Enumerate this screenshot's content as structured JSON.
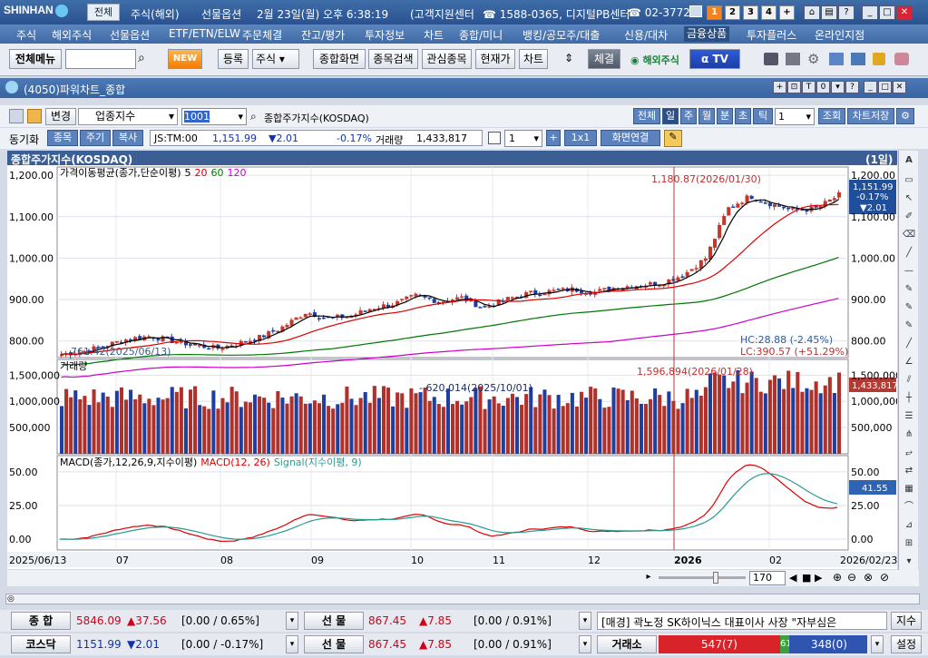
{
  "titlebar": {
    "brand": "SHINHAN",
    "all_tab": "전체",
    "stock_foreign": "주식(해외)",
    "futures_option": "선물옵션",
    "datetime": "2월 23일(월) 오후 6:38:19",
    "support": "(고객지원센터",
    "phone1": "1588-0365, 디지털PB센터",
    "phone2": "02-3772-",
    "screens": [
      "1",
      "2",
      "3",
      "4",
      "+"
    ]
  },
  "menu": [
    "주식",
    "해외주식",
    "선물옵션",
    "ETF/ETN/ELW",
    "주문체결",
    "잔고/평가",
    "투자정보",
    "차트",
    "종합/미니",
    "뱅킹/공모주/대출",
    "신용/대차",
    "금융상품",
    "투자플러스",
    "온라인지점"
  ],
  "menu_selected": "금융상품",
  "toolbar": {
    "all_menu": "전체메뉴",
    "new": "NEW",
    "register": "등록",
    "stock": "주식",
    "b1": "종합화면",
    "b2": "종목검색",
    "b3": "관심종목",
    "b4": "현재가",
    "b5": "차트",
    "b6": "체결",
    "overseas": "해외주식",
    "tv": "TV"
  },
  "window": {
    "title": "(4050)파워차트_종합",
    "change": "변경",
    "sector": "업종지수",
    "code": "1001",
    "name": "종합주가지수(KOSDAQ)",
    "periods": [
      "전체",
      "일",
      "주",
      "월",
      "분",
      "초",
      "틱"
    ],
    "period_count": "1",
    "lookup": "조회",
    "save": "차트저장",
    "sync": "동기화",
    "tab_item": "종목",
    "tab_period": "주기",
    "tab_copy": "복사",
    "time": "JS:TM:00",
    "price": "1,151.99",
    "change_val": "▼2.01",
    "change_pct": "-0.17%",
    "vol_label": "거래량",
    "volume": "1,433,817",
    "sel_count": "1",
    "ratio": "1x1",
    "link": "화면연결"
  },
  "chart": {
    "header": "종합주가지수(KOSDAQ)",
    "interval": "(1일)",
    "ma_label": "가격이동평균(종가,단순이평)",
    "ma_periods": [
      "5",
      "20",
      "60",
      "120"
    ],
    "high_marker": "1,180.87(2026/01/30)",
    "low_marker": "761.42(2025/06/13)",
    "hc": "HC:28.88 (-2.45%)",
    "lc": "LC:390.57 (+51.29%)",
    "price_badge": [
      "1,151.99",
      "-0.17%",
      "▼2.01"
    ],
    "vol_label": "거래량",
    "vol_high": "1,596,894(2026/01/28)",
    "vol_low": "620,014(2025/10/01)",
    "vol_badge": "1,433,817",
    "macd_label": "MACD(종가,12,26,9,지수이평)",
    "macd_series": "MACD(12, 26)",
    "signal_series": "Signal(지수이평, 9)",
    "macd_badge": "41.55",
    "x_start": "2025/06/13",
    "x_end": "2026/02/23",
    "zoom": "170"
  },
  "chart_data": {
    "type": "line",
    "price_axis": {
      "ticks": [
        "800.00",
        "900.00",
        "1,000.00",
        "1,100.00",
        "1,200.00"
      ],
      "ylim": [
        760,
        1220
      ]
    },
    "volume_axis": {
      "ticks": [
        "500,000",
        "1,000,000",
        "1,500,000"
      ]
    },
    "macd_axis": {
      "ticks": [
        "0.00",
        "25.00",
        "50.00"
      ]
    },
    "x_ticks": [
      "07",
      "08",
      "09",
      "10",
      "11",
      "12",
      "2026",
      "02"
    ],
    "series": [
      {
        "name": "종가",
        "values": [
          768,
          775,
          790,
          805,
          812,
          800,
          790,
          782,
          795,
          810,
          835,
          870,
          855,
          860,
          880,
          890,
          910,
          895,
          905,
          880,
          900,
          915,
          920,
          925,
          918,
          930,
          935,
          940,
          960,
          1000,
          1120,
          1150,
          1130,
          1115,
          1120,
          1152
        ]
      }
    ]
  },
  "status": {
    "kospi_label": "종   합",
    "kospi": "5846.09",
    "kospi_chg": "▲37.56",
    "kospi_pct": "[0.00  / 0.65%",
    "fut_label": "선   물",
    "fut": "867.45",
    "fut_chg": "▲7.85",
    "fut_pct": "[0.00  / 0.91%",
    "news": "[매경] 곽노정 SK하이닉스 대표이사 사장  \"자부심은",
    "news_btn": "지수",
    "kosdaq_label": "코스닥",
    "kosdaq": "1151.99",
    "kosdaq_chg": "▼2.01",
    "kosdaq_pct": "[0.00  / -0.17%",
    "exchange_label": "거래소",
    "up_count": "547(7)",
    "mid_count": "61",
    "down_count": "348(0)",
    "settings": "설정"
  }
}
